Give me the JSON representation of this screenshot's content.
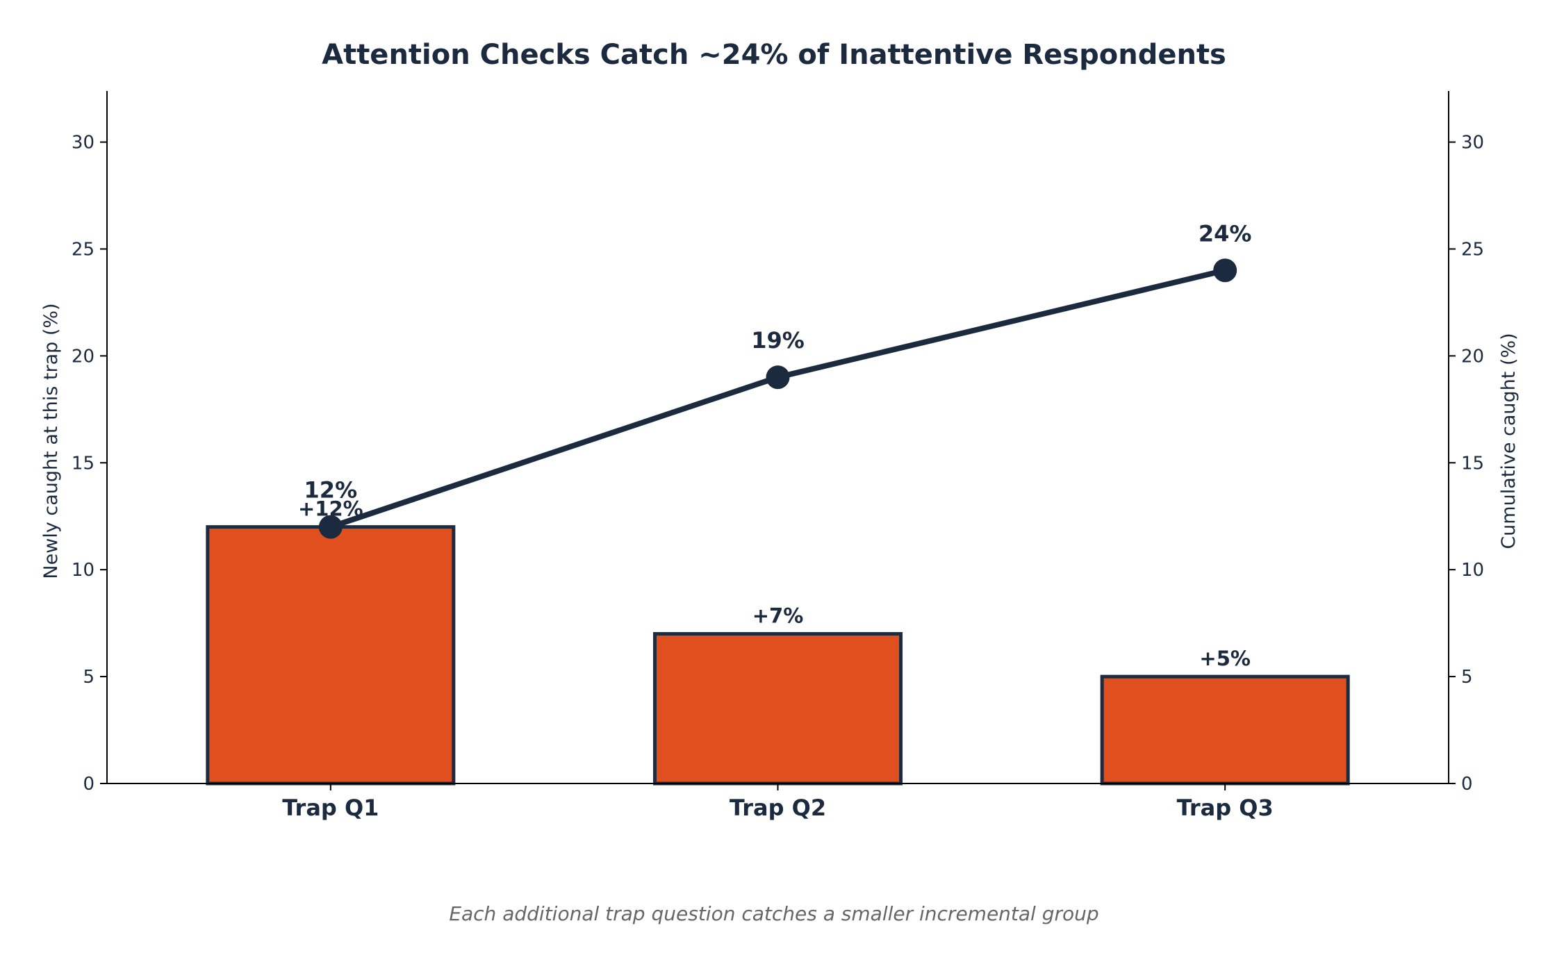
{
  "chart_data": {
    "type": "bar",
    "title": "Attention Checks Catch ~24% of Inattentive Respondents",
    "categories": [
      "Trap Q1",
      "Trap Q2",
      "Trap Q3"
    ],
    "series": [
      {
        "name": "Newly caught at this trap (%)",
        "type": "bar",
        "axis": "left",
        "values": [
          12,
          7,
          5
        ],
        "labels": [
          "+12%",
          "+7%",
          "+5%"
        ],
        "color": "#e0501f",
        "edge_color": "#1f2b3d"
      },
      {
        "name": "Cumulative caught (%)",
        "type": "line",
        "axis": "right",
        "values": [
          12,
          19,
          24
        ],
        "labels": [
          "12%",
          "19%",
          "24%"
        ],
        "color": "#1b2a3f"
      }
    ],
    "ylabel": "Newly caught at this trap (%)",
    "ylabel_right": "Cumulative caught (%)",
    "ylim": [
      0,
      32
    ],
    "ylim_right": [
      0,
      32
    ],
    "yticks": [
      "0",
      "5",
      "10",
      "15",
      "20",
      "25",
      "30"
    ],
    "yticks_right": [
      "0",
      "5",
      "10",
      "15",
      "20",
      "25",
      "30"
    ],
    "ytick_values": [
      0,
      5,
      10,
      15,
      20,
      25,
      30
    ],
    "grid": false,
    "caption": "Each additional trap question catches a smaller incremental group"
  }
}
